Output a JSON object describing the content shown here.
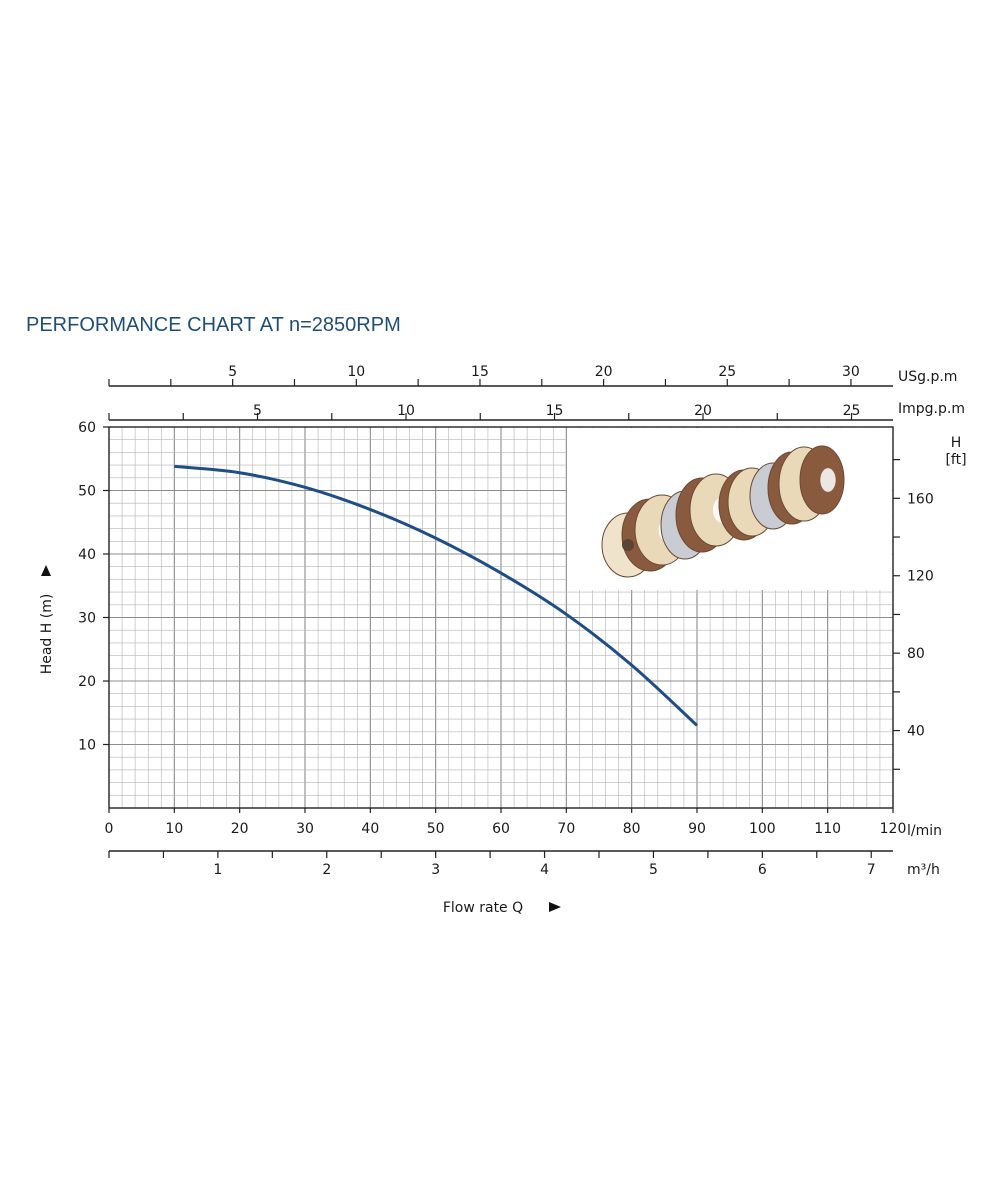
{
  "chart_data": {
    "type": "line",
    "title": "PERFORMANCE CHART AT n=2850RPM",
    "xlabel": "Flow rate Q",
    "ylabel": "Head H (m)",
    "xlim": [
      0,
      120
    ],
    "ylim": [
      0,
      60
    ],
    "x_ticks_lmin": [
      "0",
      "10",
      "20",
      "30",
      "40",
      "50",
      "60",
      "70",
      "80",
      "90",
      "100",
      "110",
      "120"
    ],
    "x_unit_lmin": "l/min",
    "x_ticks_m3h": [
      "1",
      "2",
      "3",
      "4",
      "5",
      "6",
      "7"
    ],
    "x_unit_m3h": "m³/h",
    "x_ticks_usgpm": [
      "5",
      "10",
      "15",
      "20",
      "25",
      "30"
    ],
    "x_unit_usgpm": "USg.p.m",
    "x_ticks_impgpm": [
      "5",
      "10",
      "15",
      "20",
      "25"
    ],
    "x_unit_impgpm": "Impg.p.m",
    "y_ticks_m": [
      "10",
      "20",
      "30",
      "40",
      "50",
      "60"
    ],
    "y_ticks_ft": [
      "40",
      "80",
      "120",
      "160"
    ],
    "y_right_unit": "H",
    "y_right_unit_sub": "[ft]",
    "grid": true,
    "series": [
      {
        "color": "#1f4e86",
        "x": [
          10,
          20,
          30,
          40,
          50,
          60,
          70,
          80,
          90
        ],
        "y": [
          53.8,
          52.8,
          50.5,
          47.0,
          42.5,
          37.0,
          30.5,
          22.5,
          13.0
        ]
      }
    ]
  },
  "image": {
    "icon": "impeller-stages-image"
  }
}
